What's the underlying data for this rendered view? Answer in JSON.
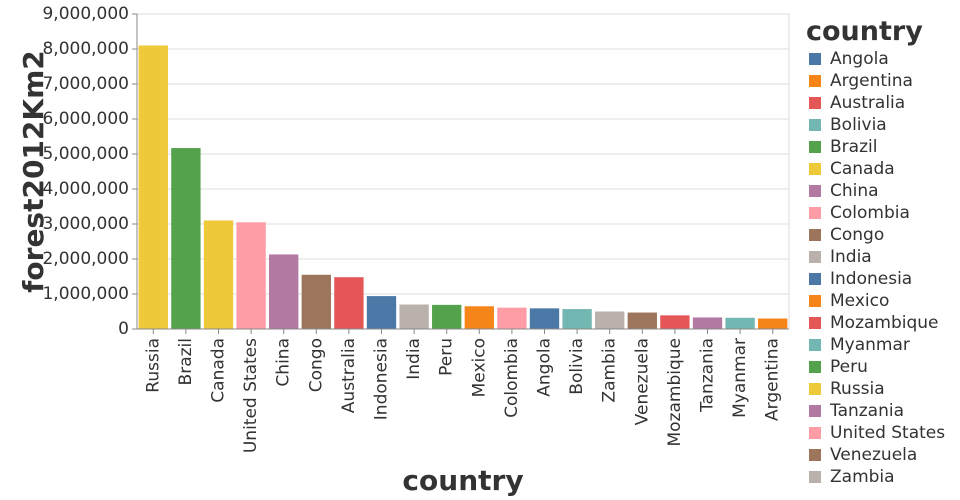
{
  "chart_data": {
    "type": "bar",
    "xlabel": "country",
    "ylabel": "forest2012Km2",
    "ylim": [
      0,
      9000000
    ],
    "yticks": [
      0,
      1000000,
      2000000,
      3000000,
      4000000,
      5000000,
      6000000,
      7000000,
      8000000,
      9000000
    ],
    "ytick_labels": [
      "0",
      "1,000,000",
      "2,000,000",
      "3,000,000",
      "4,000,000",
      "5,000,000",
      "6,000,000",
      "7,000,000",
      "8,000,000",
      "9,000,000"
    ],
    "grid": true,
    "categories": [
      "Russia",
      "Brazil",
      "Canada",
      "United States",
      "China",
      "Congo",
      "Australia",
      "Indonesia",
      "India",
      "Peru",
      "Mexico",
      "Colombia",
      "Angola",
      "Bolivia",
      "Zambia",
      "Venezuela",
      "Mozambique",
      "Tanzania",
      "Myanmar",
      "Argentina"
    ],
    "values": [
      8100000,
      5170000,
      3100000,
      3050000,
      2130000,
      1550000,
      1480000,
      940000,
      700000,
      690000,
      650000,
      610000,
      590000,
      570000,
      500000,
      470000,
      390000,
      330000,
      320000,
      300000
    ],
    "legend": {
      "title": "country",
      "position": "right",
      "items": [
        {
          "label": "Angola",
          "color": "#4c78a8"
        },
        {
          "label": "Argentina",
          "color": "#f58518"
        },
        {
          "label": "Australia",
          "color": "#e45756"
        },
        {
          "label": "Bolivia",
          "color": "#72b7b2"
        },
        {
          "label": "Brazil",
          "color": "#54a24b"
        },
        {
          "label": "Canada",
          "color": "#eeca3b"
        },
        {
          "label": "China",
          "color": "#b279a2"
        },
        {
          "label": "Colombia",
          "color": "#ff9da6"
        },
        {
          "label": "Congo",
          "color": "#9d755d"
        },
        {
          "label": "India",
          "color": "#bab0ac"
        },
        {
          "label": "Indonesia",
          "color": "#4c78a8"
        },
        {
          "label": "Mexico",
          "color": "#f58518"
        },
        {
          "label": "Mozambique",
          "color": "#e45756"
        },
        {
          "label": "Myanmar",
          "color": "#72b7b2"
        },
        {
          "label": "Peru",
          "color": "#54a24b"
        },
        {
          "label": "Russia",
          "color": "#eeca3b"
        },
        {
          "label": "Tanzania",
          "color": "#b279a2"
        },
        {
          "label": "United States",
          "color": "#ff9da6"
        },
        {
          "label": "Venezuela",
          "color": "#9d755d"
        },
        {
          "label": "Zambia",
          "color": "#bab0ac"
        }
      ]
    }
  }
}
